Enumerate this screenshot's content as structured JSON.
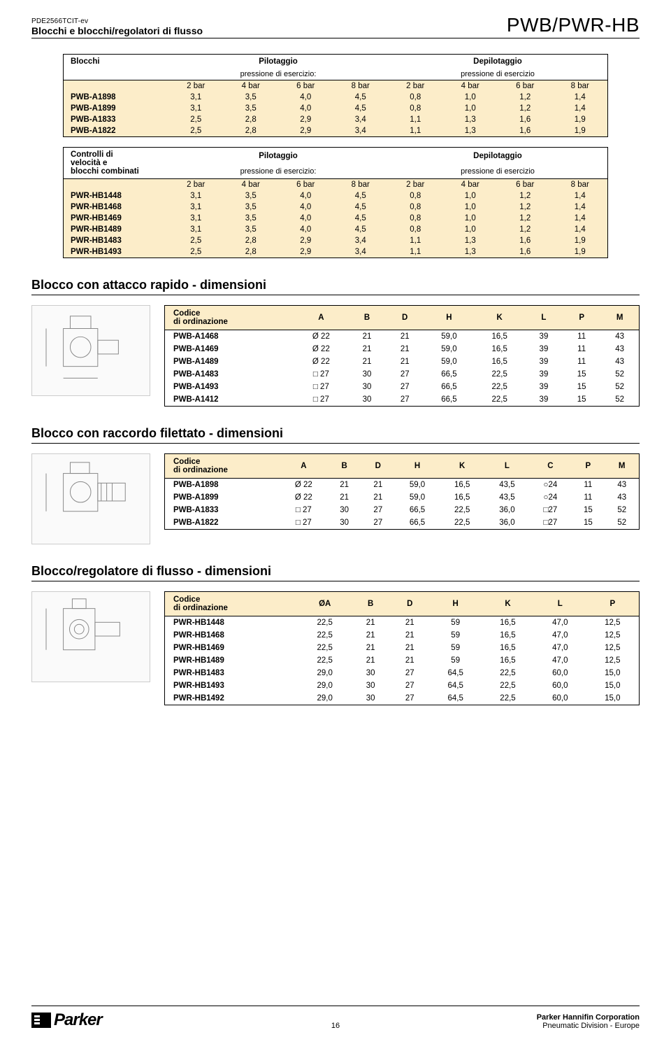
{
  "colors": {
    "cream": "#fcedc9",
    "text": "#000000",
    "background": "#ffffff",
    "border": "#000000",
    "placeholder_bg": "#fafafa",
    "placeholder_border": "#cccccc"
  },
  "header": {
    "doc_id": "PDE2566TCIT-ev",
    "doc_title": "Blocchi e blocchi/regolatori di flusso",
    "product": "PWB/PWR-HB"
  },
  "table1": {
    "title_left": "Blocchi",
    "title_mid": "Pilotaggio",
    "title_right": "Depilotaggio",
    "sub_mid": "pressione di esercizio:",
    "sub_right": "pressione di esercizio",
    "col_heads": [
      "2 bar",
      "4 bar",
      "6 bar",
      "8 bar",
      "2 bar",
      "4 bar",
      "6 bar",
      "8 bar"
    ],
    "rows": [
      {
        "label": "PWB-A1898",
        "vals": [
          "3,1",
          "3,5",
          "4,0",
          "4,5",
          "0,8",
          "1,0",
          "1,2",
          "1,4"
        ]
      },
      {
        "label": "PWB-A1899",
        "vals": [
          "3,1",
          "3,5",
          "4,0",
          "4,5",
          "0,8",
          "1,0",
          "1,2",
          "1,4"
        ]
      },
      {
        "label": "PWB-A1833",
        "vals": [
          "2,5",
          "2,8",
          "2,9",
          "3,4",
          "1,1",
          "1,3",
          "1,6",
          "1,9"
        ]
      },
      {
        "label": "PWB-A1822",
        "vals": [
          "2,5",
          "2,8",
          "2,9",
          "3,4",
          "1,1",
          "1,3",
          "1,6",
          "1,9"
        ]
      }
    ]
  },
  "table2": {
    "title_left_l1": "Controlli di",
    "title_left_l2": "velocità e",
    "title_left_l3": "blocchi combinati",
    "title_mid": "Pilotaggio",
    "title_right": "Depilotaggio",
    "sub_mid": "pressione di esercizio:",
    "sub_right": "pressione di esercizio",
    "col_heads": [
      "2 bar",
      "4 bar",
      "6 bar",
      "8 bar",
      "2 bar",
      "4 bar",
      "6 bar",
      "8 bar"
    ],
    "rows": [
      {
        "label": "PWR-HB1448",
        "vals": [
          "3,1",
          "3,5",
          "4,0",
          "4,5",
          "0,8",
          "1,0",
          "1,2",
          "1,4"
        ]
      },
      {
        "label": "PWR-HB1468",
        "vals": [
          "3,1",
          "3,5",
          "4,0",
          "4,5",
          "0,8",
          "1,0",
          "1,2",
          "1,4"
        ]
      },
      {
        "label": "PWR-HB1469",
        "vals": [
          "3,1",
          "3,5",
          "4,0",
          "4,5",
          "0,8",
          "1,0",
          "1,2",
          "1,4"
        ]
      },
      {
        "label": "PWR-HB1489",
        "vals": [
          "3,1",
          "3,5",
          "4,0",
          "4,5",
          "0,8",
          "1,0",
          "1,2",
          "1,4"
        ]
      },
      {
        "label": "PWR-HB1483",
        "vals": [
          "2,5",
          "2,8",
          "2,9",
          "3,4",
          "1,1",
          "1,3",
          "1,6",
          "1,9"
        ]
      },
      {
        "label": "PWR-HB1493",
        "vals": [
          "2,5",
          "2,8",
          "2,9",
          "3,4",
          "1,1",
          "1,3",
          "1,6",
          "1,9"
        ]
      }
    ]
  },
  "sections": {
    "s1": "Blocco con attacco rapido - dimensioni",
    "s2": "Blocco con raccordo filettato - dimensioni",
    "s3": "Blocco/regolatore di flusso - dimensioni"
  },
  "dim1": {
    "head_label": "Codice di ordinazione",
    "cols": [
      "A",
      "B",
      "D",
      "H",
      "K",
      "L",
      "P",
      "M"
    ],
    "rows": [
      {
        "label": "PWB-A1468",
        "vals": [
          "Ø 22",
          "21",
          "21",
          "59,0",
          "16,5",
          "39",
          "11",
          "43"
        ]
      },
      {
        "label": "PWB-A1469",
        "vals": [
          "Ø 22",
          "21",
          "21",
          "59,0",
          "16,5",
          "39",
          "11",
          "43"
        ]
      },
      {
        "label": "PWB-A1489",
        "vals": [
          "Ø 22",
          "21",
          "21",
          "59,0",
          "16,5",
          "39",
          "11",
          "43"
        ]
      },
      {
        "label": "PWB-A1483",
        "vals": [
          "□ 27",
          "30",
          "27",
          "66,5",
          "22,5",
          "39",
          "15",
          "52"
        ]
      },
      {
        "label": "PWB-A1493",
        "vals": [
          "□ 27",
          "30",
          "27",
          "66,5",
          "22,5",
          "39",
          "15",
          "52"
        ]
      },
      {
        "label": "PWB-A1412",
        "vals": [
          "□ 27",
          "30",
          "27",
          "66,5",
          "22,5",
          "39",
          "15",
          "52"
        ]
      }
    ]
  },
  "dim2": {
    "head_label": "Codice di ordinazione",
    "cols": [
      "A",
      "B",
      "D",
      "H",
      "K",
      "L",
      "C",
      "P",
      "M"
    ],
    "rows": [
      {
        "label": "PWB-A1898",
        "vals": [
          "Ø 22",
          "21",
          "21",
          "59,0",
          "16,5",
          "43,5",
          "○24",
          "11",
          "43"
        ]
      },
      {
        "label": "PWB-A1899",
        "vals": [
          "Ø 22",
          "21",
          "21",
          "59,0",
          "16,5",
          "43,5",
          "○24",
          "11",
          "43"
        ]
      },
      {
        "label": "PWB-A1833",
        "vals": [
          "□ 27",
          "30",
          "27",
          "66,5",
          "22,5",
          "36,0",
          "□27",
          "15",
          "52"
        ]
      },
      {
        "label": "PWB-A1822",
        "vals": [
          "□ 27",
          "30",
          "27",
          "66,5",
          "22,5",
          "36,0",
          "□27",
          "15",
          "52"
        ]
      }
    ]
  },
  "dim3": {
    "head_label": "Codice di ordinazione",
    "cols": [
      "ØA",
      "B",
      "D",
      "H",
      "K",
      "L",
      "P"
    ],
    "rows": [
      {
        "label": "PWR-HB1448",
        "vals": [
          "22,5",
          "21",
          "21",
          "59",
          "16,5",
          "47,0",
          "12,5"
        ]
      },
      {
        "label": "PWR-HB1468",
        "vals": [
          "22,5",
          "21",
          "21",
          "59",
          "16,5",
          "47,0",
          "12,5"
        ]
      },
      {
        "label": "PWR-HB1469",
        "vals": [
          "22,5",
          "21",
          "21",
          "59",
          "16,5",
          "47,0",
          "12,5"
        ]
      },
      {
        "label": "PWR-HB1489",
        "vals": [
          "22,5",
          "21",
          "21",
          "59",
          "16,5",
          "47,0",
          "12,5"
        ]
      },
      {
        "label": "PWR-HB1483",
        "vals": [
          "29,0",
          "30",
          "27",
          "64,5",
          "22,5",
          "60,0",
          "15,0"
        ]
      },
      {
        "label": "PWR-HB1493",
        "vals": [
          "29,0",
          "30",
          "27",
          "64,5",
          "22,5",
          "60,0",
          "15,0"
        ]
      },
      {
        "label": "PWR-HB1492",
        "vals": [
          "29,0",
          "30",
          "27",
          "64,5",
          "22,5",
          "60,0",
          "15,0"
        ]
      }
    ]
  },
  "footer": {
    "brand": "Parker",
    "page": "16",
    "company": "Parker Hannifin Corporation",
    "division": "Pneumatic Division - Europe"
  }
}
